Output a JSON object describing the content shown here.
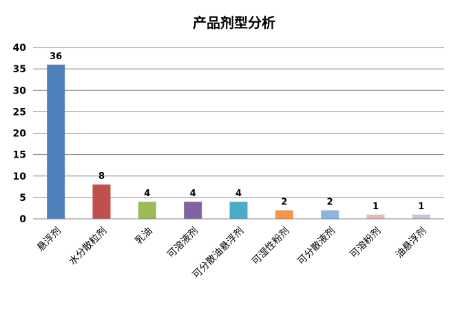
{
  "chart_data": {
    "type": "bar",
    "title": "产品剂型分析",
    "xlabel": "",
    "ylabel": "",
    "categories": [
      "悬浮剂",
      "水分散粒剂",
      "乳油",
      "可溶液剂",
      "可分散油悬浮剂",
      "可湿性粉剂",
      "可分散液剂",
      "可溶粉剂",
      "油悬浮剂"
    ],
    "values": [
      36,
      8,
      4,
      4,
      4,
      2,
      2,
      1,
      1
    ],
    "data_labels": [
      "36",
      "8",
      "4",
      "4",
      "4",
      "2",
      "2",
      "1",
      "1"
    ],
    "colors": [
      "#4f81bd",
      "#c0504d",
      "#9bbb59",
      "#8064a2",
      "#4bacc6",
      "#f79646",
      "#8db3e2",
      "#e6b9b8",
      "#ccc1da"
    ],
    "ylim": [
      0,
      40
    ],
    "yticks": [
      "0",
      "5",
      "10",
      "15",
      "20",
      "25",
      "30",
      "35",
      "40"
    ],
    "grid": true,
    "legend": "none"
  }
}
